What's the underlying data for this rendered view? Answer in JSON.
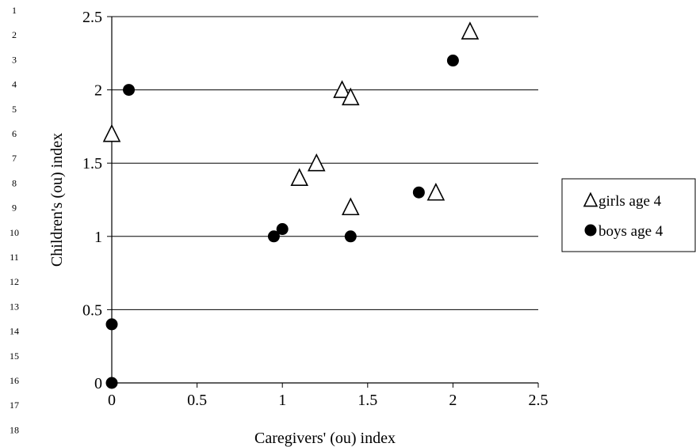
{
  "line_numbers": [
    "1",
    "2",
    "3",
    "4",
    "5",
    "6",
    "7",
    "8",
    "9",
    "10",
    "11",
    "12",
    "13",
    "14",
    "15",
    "16",
    "17",
    "18"
  ],
  "chart_data": {
    "type": "scatter",
    "title": "",
    "xlabel": "Caregivers' (ou) index",
    "ylabel": "Children's (ou) index",
    "xlim": [
      0,
      2.5
    ],
    "ylim": [
      0,
      2.5
    ],
    "x_ticks": [
      "0",
      "0.5",
      "1",
      "1.5",
      "2",
      "2.5"
    ],
    "y_ticks": [
      "0",
      "0.5",
      "1",
      "1.5",
      "2",
      "2.5"
    ],
    "grid": "horizontal",
    "legend_position": "right",
    "series": [
      {
        "name": "girls age 4",
        "marker": "triangle-open",
        "color": "#000000",
        "points": [
          [
            0,
            1.7
          ],
          [
            1.1,
            1.4
          ],
          [
            1.2,
            1.5
          ],
          [
            1.35,
            2.0
          ],
          [
            1.4,
            1.95
          ],
          [
            1.4,
            1.2
          ],
          [
            1.9,
            1.3
          ],
          [
            2.1,
            2.4
          ]
        ]
      },
      {
        "name": "boys age 4",
        "marker": "circle-filled",
        "color": "#000000",
        "points": [
          [
            0,
            0
          ],
          [
            0,
            0.4
          ],
          [
            0.1,
            2.0
          ],
          [
            0.95,
            1.0
          ],
          [
            1.0,
            1.05
          ],
          [
            1.4,
            1.0
          ],
          [
            1.8,
            1.3
          ],
          [
            2.0,
            2.2
          ]
        ]
      }
    ]
  }
}
